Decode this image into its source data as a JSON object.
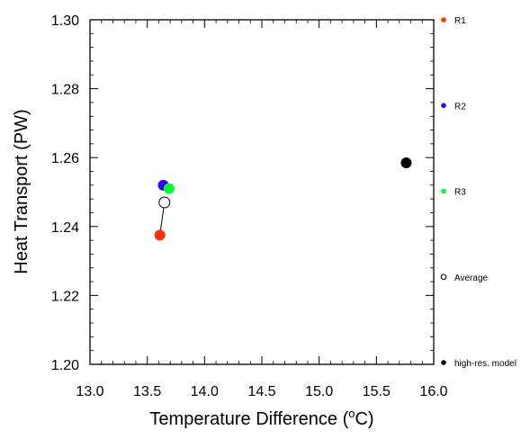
{
  "chart_data": {
    "type": "scatter",
    "xlabel": "Temperature Difference (",
    "xlabel_unit_super": "o",
    "xlabel_unit_tail": "C)",
    "ylabel": "Heat Transport (PW)",
    "xlim": [
      13.0,
      16.0
    ],
    "ylim": [
      1.2,
      1.3
    ],
    "x_ticks": [
      "13.0",
      "13.5",
      "14.0",
      "14.5",
      "15.0",
      "15.5",
      "16.0"
    ],
    "y_ticks": [
      "1.20",
      "1.22",
      "1.24",
      "1.26",
      "1.28",
      "1.30"
    ],
    "grid": false,
    "legend_placement": "right",
    "series": [
      {
        "name": "R1",
        "x": 13.61,
        "y": 1.2375,
        "color": "#ff3300",
        "filled": true
      },
      {
        "name": "R2",
        "x": 13.64,
        "y": 1.252,
        "color": "#3300ff",
        "filled": true
      },
      {
        "name": "R3",
        "x": 13.69,
        "y": 1.251,
        "color": "#00ff33",
        "filled": true
      },
      {
        "name": "Average",
        "x": 13.65,
        "y": 1.247,
        "color": "#000000",
        "filled": false
      },
      {
        "name": "high-res. model",
        "x": 15.76,
        "y": 1.2585,
        "color": "#000000",
        "filled": true
      }
    ],
    "connector": {
      "from": "Average",
      "to": "R1"
    }
  }
}
